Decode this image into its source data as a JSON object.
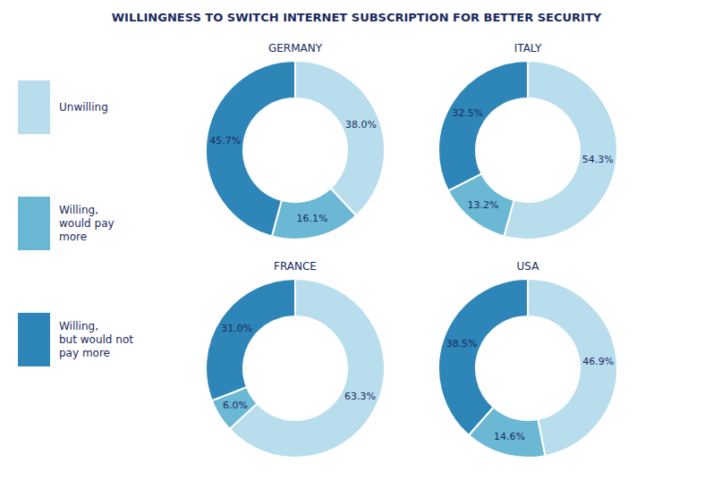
{
  "chart_data": {
    "type": "pie",
    "title": "WILLINGNESS TO SWITCH INTERNET SUBSCRIPTION FOR BETTER SECURITY",
    "categories": [
      "Unwilling",
      "Willing,\nwould pay\nmore",
      "Willing,\nbut would not\npay more"
    ],
    "colors": [
      "#b8dded",
      "#6ab8d4",
      "#2e86b8"
    ],
    "series": [
      {
        "name": "GERMANY",
        "values": [
          38.0,
          16.1,
          45.7
        ],
        "value_labels": [
          "38.0%",
          "16.1%",
          "45.7%"
        ]
      },
      {
        "name": "ITALY",
        "values": [
          54.3,
          13.2,
          32.5
        ],
        "value_labels": [
          "54.3%",
          "13.2%",
          "32.5%"
        ]
      },
      {
        "name": "FRANCE",
        "values": [
          63.3,
          6.0,
          31.0
        ],
        "value_labels": [
          "63.3%",
          "6.0%",
          "31.0%"
        ]
      },
      {
        "name": "USA",
        "values": [
          46.9,
          14.6,
          38.5
        ],
        "value_labels": [
          "46.9%",
          "14.6%",
          "38.5%"
        ]
      }
    ],
    "data_labels": true,
    "legend": "left"
  }
}
